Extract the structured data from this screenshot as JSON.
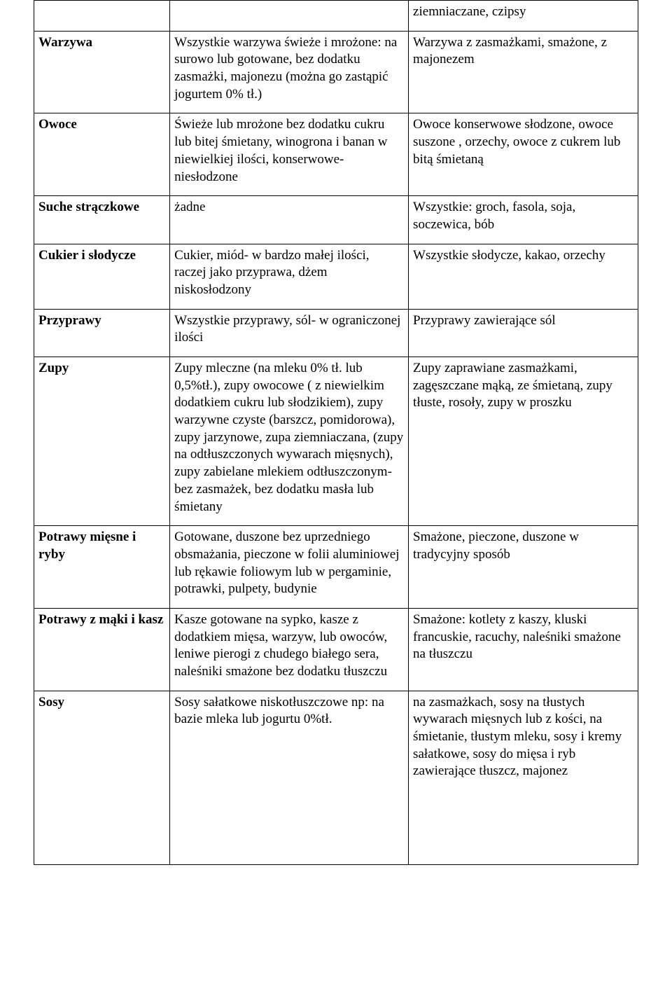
{
  "table": {
    "type": "table",
    "columns": 3,
    "col_widths_percent": [
      22.5,
      39.5,
      38
    ],
    "border_color": "#000000",
    "background_color": "#ffffff",
    "text_color": "#000000",
    "font_family": "Times New Roman",
    "font_size_pt": 14,
    "label_font_weight": "bold",
    "rows": [
      {
        "label": "",
        "allowed": "",
        "not_allowed": "ziemniaczane, czipsy"
      },
      {
        "label": "Warzywa",
        "allowed": "Wszystkie warzywa świeże i mrożone: na surowo lub gotowane, bez dodatku zasmażki, majonezu (można go zastąpić jogurtem 0% tł.)",
        "not_allowed": "Warzywa z zasmażkami, smażone, z majonezem"
      },
      {
        "label": "Owoce",
        "allowed": "Świeże lub mrożone bez dodatku cukru lub bitej śmietany, winogrona i banan w niewielkiej ilości, konserwowe- niesłodzone",
        "not_allowed": "Owoce konserwowe słodzone, owoce suszone , orzechy, owoce z cukrem lub bitą śmietaną"
      },
      {
        "label": "Suche strączkowe",
        "allowed": "żadne",
        "not_allowed": "Wszystkie: groch, fasola, soja, soczewica, bób"
      },
      {
        "label": "Cukier i słodycze",
        "allowed": "Cukier, miód- w bardzo małej ilości, raczej jako przyprawa, dżem niskosłodzony",
        "not_allowed": "Wszystkie słodycze, kakao, orzechy"
      },
      {
        "label": "Przyprawy",
        "allowed": "Wszystkie przyprawy, sól- w ograniczonej ilości",
        "not_allowed": "Przyprawy zawierające sól"
      },
      {
        "label": "Zupy",
        "allowed": "Zupy mleczne (na mleku 0% tł. lub 0,5%tł.), zupy owocowe ( z niewielkim dodatkiem cukru lub słodzikiem), zupy warzywne czyste (barszcz, pomidorowa), zupy jarzynowe, zupa ziemniaczana, (zupy na odtłuszczonych wywarach mięsnych), zupy zabielane mlekiem odtłuszczonym- bez zasmażek, bez dodatku masła lub śmietany",
        "not_allowed": "Zupy zaprawiane zasmażkami, zagęszczane mąką, ze śmietaną, zupy tłuste, rosoły, zupy w proszku"
      },
      {
        "label": "Potrawy mięsne i ryby",
        "allowed": "Gotowane, duszone bez uprzedniego obsmażania, pieczone w folii aluminiowej lub rękawie foliowym lub w pergaminie, potrawki, pulpety, budynie",
        "not_allowed": "Smażone, pieczone, duszone w tradycyjny sposób"
      },
      {
        "label": "Potrawy z mąki i kasz",
        "allowed": "Kasze gotowane na sypko, kasze z dodatkiem mięsa, warzyw, lub owoców, leniwe pierogi z chudego białego sera, naleśniki smażone bez dodatku tłuszczu",
        "not_allowed": "Smażone: kotlety z kaszy, kluski francuskie, racuchy, naleśniki smażone na tłuszczu"
      },
      {
        "label": "Sosy",
        "allowed": "Sosy sałatkowe niskotłuszczowe np: na bazie mleka lub jogurtu 0%tł.",
        "not_allowed": "na zasmażkach, sosy na tłustych wywarach mięsnych lub z kości, na śmietanie, tłustym mleku, sosy i kremy sałatkowe, sosy do mięsa i ryb zawierające tłuszcz, majonez"
      }
    ]
  }
}
